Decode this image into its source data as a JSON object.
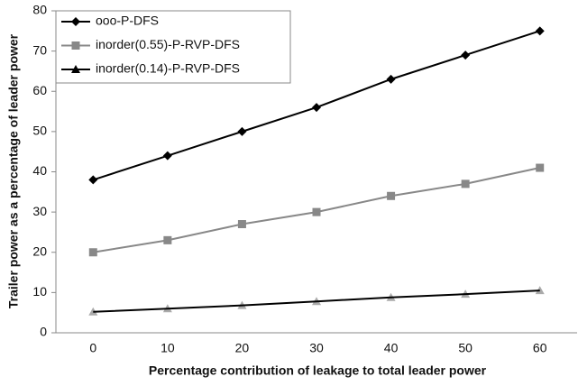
{
  "chart_data": {
    "type": "line",
    "x_label": "Percentage contribution of leakage to total leader power",
    "y_label": "Trailer power as a percentage of leader power",
    "categories": [
      "0",
      "10",
      "20",
      "30",
      "40",
      "50",
      "60"
    ],
    "series": [
      {
        "name": "ooo-P-DFS",
        "color": "#000000",
        "line_color": "#000000",
        "marker": "diamond",
        "values": [
          38,
          44,
          50,
          56,
          63,
          69,
          75
        ]
      },
      {
        "name": "inorder(0.55)-P-RVP-DFS",
        "color": "#888888",
        "line_color": "#888888",
        "marker": "square",
        "values": [
          20,
          23,
          27,
          30,
          34,
          37,
          41
        ]
      },
      {
        "name": "inorder(0.14)-P-RVP-DFS",
        "color": "#aaaaaa",
        "line_color": "#000000",
        "marker": "triangle",
        "values": [
          5.2,
          6,
          6.8,
          7.8,
          8.8,
          9.6,
          10.5
        ]
      }
    ],
    "ylim": [
      0,
      80
    ],
    "yticks": [
      0,
      10,
      20,
      30,
      40,
      50,
      60,
      70,
      80
    ],
    "legend": "upper left",
    "grid": false
  }
}
